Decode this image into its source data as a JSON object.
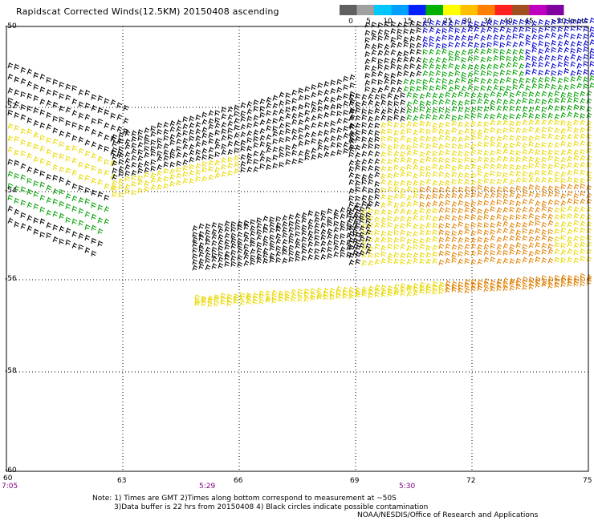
{
  "title": "Rapidscat Corrected Winds(12.5KM) 20150408 ascending",
  "legend": {
    "labels": [
      "0",
      "5",
      "10",
      "15",
      "20",
      "25",
      "30",
      "35",
      "40",
      "45",
      ">50 knots"
    ],
    "colors": [
      "#606060",
      "#a0a0a0",
      "#00c8ff",
      "#00a0ff",
      "#0020ff",
      "#00b000",
      "#ffff00",
      "#ffc000",
      "#ff8000",
      "#ff2020",
      "#a05020",
      "#c000c0",
      "#8000a0"
    ]
  },
  "lat_labels": [
    "-50",
    "-52",
    "-54",
    "-56",
    "-58",
    "-60"
  ],
  "lon_labels": [
    "60",
    "63",
    "66",
    "69",
    "72",
    "75"
  ],
  "time_labels": [
    "7:05",
    "5:29",
    "5:30"
  ],
  "notes": [
    "Note: 1) Times are GMT 2)Times along bottom correspond to measurement at ~50S",
    "3)Data buffer is 22 hrs from 20150408 4) Black circles indicate possible contamination",
    "NOAA/NESDIS/Office of Research and Applications"
  ],
  "wind_colors": {
    "calm": "#000000",
    "moderate": "#00a000",
    "strong": "#0000d0",
    "gale": "#e8d800",
    "storm": "#e08000",
    "severe": "#d04000"
  }
}
